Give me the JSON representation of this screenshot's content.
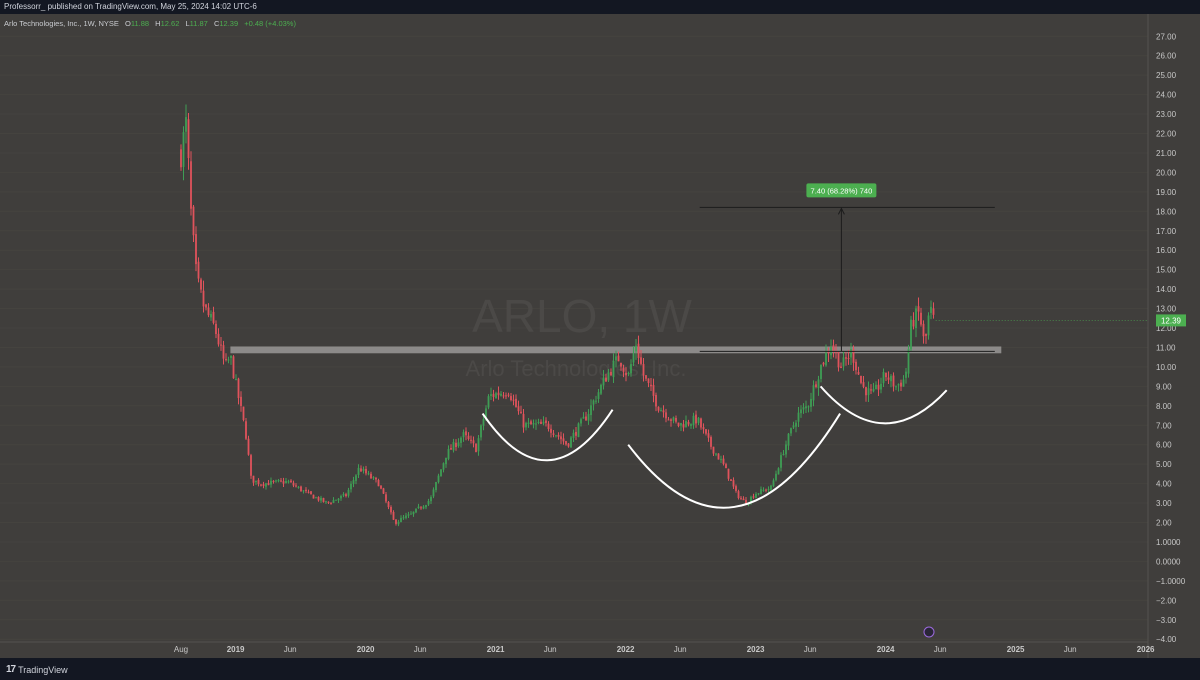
{
  "header": {
    "publisher_line": "Professorr_ published on TradingView.com, May 25, 2024 14:02 UTC-6"
  },
  "legend": {
    "symbol_name": "Arlo Technologies, Inc., 1W, NYSE",
    "open_label": "O",
    "open": "11.88",
    "high_label": "H",
    "high": "12.62",
    "low_label": "L",
    "low": "11.87",
    "close_label": "C",
    "close": "12.39",
    "change": "+0.48 (+4.03%)"
  },
  "watermark": {
    "ticker": "ARLO, 1W",
    "company": "Arlo Technologies, Inc."
  },
  "footer": {
    "brand": "TradingView"
  },
  "colors": {
    "up": "#3f9e55",
    "down": "#e0535c",
    "background": "#403e3c",
    "last_price_badge": "#4caf50"
  },
  "chart_data": {
    "type": "candlestick",
    "timeframe": "1W",
    "ylim": [
      -4,
      27
    ],
    "y_ticks": [
      "27.00",
      "26.00",
      "25.00",
      "24.00",
      "23.00",
      "22.00",
      "21.00",
      "20.00",
      "19.00",
      "18.00",
      "17.00",
      "16.00",
      "15.00",
      "14.00",
      "13.00",
      "12.00",
      "11.00",
      "10.00",
      "9.00",
      "8.00",
      "7.00",
      "6.00",
      "5.00",
      "4.00",
      "3.00",
      "2.00",
      "1.0000",
      "0.0000",
      "−1.0000",
      "−2.00",
      "−3.00",
      "−4.00"
    ],
    "x_ticks": [
      {
        "label": "Aug",
        "t": 2018.58
      },
      {
        "label": "2019",
        "t": 2019.0
      },
      {
        "label": "Jun",
        "t": 2019.42
      },
      {
        "label": "2020",
        "t": 2020.0
      },
      {
        "label": "Jun",
        "t": 2020.42
      },
      {
        "label": "2021",
        "t": 2021.0
      },
      {
        "label": "Jun",
        "t": 2021.42
      },
      {
        "label": "2022",
        "t": 2022.0
      },
      {
        "label": "Jun",
        "t": 2022.42
      },
      {
        "label": "2023",
        "t": 2023.0
      },
      {
        "label": "Jun",
        "t": 2023.42
      },
      {
        "label": "2024",
        "t": 2024.0
      },
      {
        "label": "Jun",
        "t": 2024.42
      },
      {
        "label": "2025",
        "t": 2025.0
      },
      {
        "label": "Jun",
        "t": 2025.42
      },
      {
        "label": "2026",
        "t": 2026.0
      }
    ],
    "last_price": "12.39",
    "price_path": [
      [
        2018.58,
        21.0
      ],
      [
        2018.62,
        22.5
      ],
      [
        2018.66,
        17.5
      ],
      [
        2018.7,
        14.5
      ],
      [
        2018.76,
        13.0
      ],
      [
        2018.84,
        12.0
      ],
      [
        2018.92,
        10.0
      ],
      [
        2018.96,
        10.5
      ],
      [
        2019.02,
        8.5
      ],
      [
        2019.08,
        6.5
      ],
      [
        2019.12,
        4.2
      ],
      [
        2019.2,
        4.0
      ],
      [
        2019.4,
        4.1
      ],
      [
        2019.55,
        3.5
      ],
      [
        2019.7,
        3.0
      ],
      [
        2019.85,
        3.4
      ],
      [
        2019.95,
        4.8
      ],
      [
        2020.1,
        4.0
      ],
      [
        2020.22,
        2.0
      ],
      [
        2020.35,
        2.4
      ],
      [
        2020.5,
        3.2
      ],
      [
        2020.62,
        5.5
      ],
      [
        2020.75,
        6.5
      ],
      [
        2020.85,
        5.8
      ],
      [
        2020.95,
        8.5
      ],
      [
        2021.1,
        8.8
      ],
      [
        2021.22,
        7.0
      ],
      [
        2021.4,
        7.0
      ],
      [
        2021.55,
        6.0
      ],
      [
        2021.7,
        7.5
      ],
      [
        2021.85,
        9.5
      ],
      [
        2021.95,
        10.5
      ],
      [
        2022.02,
        9.5
      ],
      [
        2022.08,
        11.2
      ],
      [
        2022.14,
        9.5
      ],
      [
        2022.25,
        8.0
      ],
      [
        2022.4,
        7.0
      ],
      [
        2022.55,
        7.3
      ],
      [
        2022.65,
        6.0
      ],
      [
        2022.75,
        5.0
      ],
      [
        2022.85,
        3.5
      ],
      [
        2022.92,
        3.0
      ],
      [
        2023.0,
        3.5
      ],
      [
        2023.12,
        3.8
      ],
      [
        2023.22,
        5.8
      ],
      [
        2023.32,
        7.5
      ],
      [
        2023.4,
        8.0
      ],
      [
        2023.5,
        10.0
      ],
      [
        2023.58,
        11.2
      ],
      [
        2023.66,
        10.0
      ],
      [
        2023.74,
        10.8
      ],
      [
        2023.82,
        9.0
      ],
      [
        2023.9,
        8.5
      ],
      [
        2024.0,
        9.6
      ],
      [
        2024.08,
        9.0
      ],
      [
        2024.15,
        9.4
      ],
      [
        2024.2,
        12.3
      ],
      [
        2024.26,
        12.8
      ],
      [
        2024.3,
        11.0
      ],
      [
        2024.34,
        13.0
      ],
      [
        2024.37,
        12.39
      ]
    ],
    "annotations": {
      "resistance_zone": {
        "from": 2018.96,
        "to": 2024.89,
        "low": 10.7,
        "high": 11.05
      },
      "measure_lines": {
        "upper": 18.2,
        "lower": 10.8,
        "from": 2022.57,
        "to": 2024.84,
        "arrow_at": 2023.66
      },
      "measure_label": "7.40 (68.28%) 740",
      "arcs": [
        {
          "from": 2020.9,
          "to": 2021.9,
          "start_y": 7.6,
          "bottom": 5.2,
          "end_y": 7.8
        },
        {
          "from": 2022.02,
          "to": 2023.65,
          "start_y": 6.0,
          "bottom": 2.8,
          "end_y": 7.6
        },
        {
          "from": 2023.5,
          "to": 2024.47,
          "start_y": 9.0,
          "bottom": 7.1,
          "end_y": 8.8
        }
      ]
    }
  }
}
